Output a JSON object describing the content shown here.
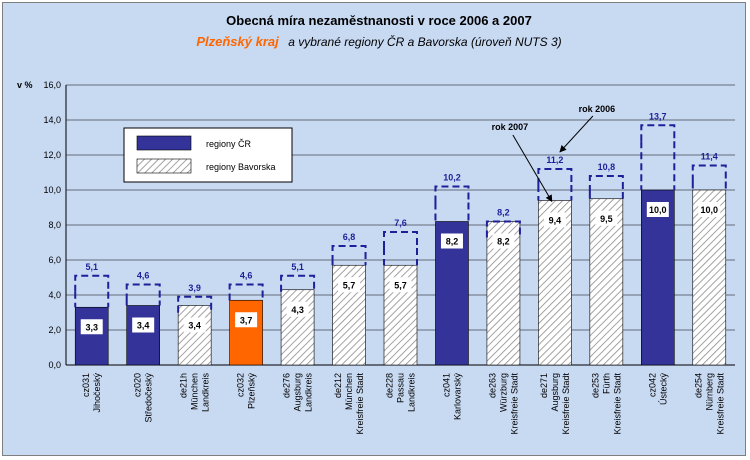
{
  "chart_data": {
    "type": "bar",
    "title": "Obecná míra nezaměstnanosti v roce 2006 a 2007",
    "subtitle_region": "Plzeňský kraj",
    "subtitle_rest": "a vybrané regiony ČR a Bavorska (úroveň NUTS 3)",
    "ylabel": "v %",
    "ylim": [
      0,
      16
    ],
    "yticks": [
      "0,0",
      "2,0",
      "4,0",
      "6,0",
      "8,0",
      "10,0",
      "12,0",
      "14,0",
      "16,0"
    ],
    "grid": true,
    "legend_position": "top-left",
    "legend": [
      {
        "key": "cz",
        "label": "regiony ČR",
        "color": "#333399"
      },
      {
        "key": "de",
        "label": "regiony Bavorska",
        "color": "#ffffff"
      }
    ],
    "categories": [
      {
        "lines": [
          "cz031",
          "Jihočeský"
        ],
        "group": "cz",
        "v2007": 3.3,
        "v2006": 5.1,
        "l2007": "3,3",
        "l2006": "5,1"
      },
      {
        "lines": [
          "cz020",
          "Středočeský"
        ],
        "group": "cz",
        "v2007": 3.4,
        "v2006": 4.6,
        "l2007": "3,4",
        "l2006": "4,6"
      },
      {
        "lines": [
          "de21h",
          "München",
          "Landkreis"
        ],
        "group": "de",
        "v2007": 3.4,
        "v2006": 3.9,
        "l2007": "3,4",
        "l2006": "3,9"
      },
      {
        "lines": [
          "cz032",
          "Plzeňský"
        ],
        "group": "highlight",
        "v2007": 3.7,
        "v2006": 4.6,
        "l2007": "3,7",
        "l2006": "4,6"
      },
      {
        "lines": [
          "de276",
          "Augsburg",
          "Landkreis"
        ],
        "group": "de",
        "v2007": 4.3,
        "v2006": 5.1,
        "l2007": "4,3",
        "l2006": "5,1"
      },
      {
        "lines": [
          "de212",
          "München",
          "Kreisfreie Stadt"
        ],
        "group": "de",
        "v2007": 5.7,
        "v2006": 6.8,
        "l2007": "5,7",
        "l2006": "6,8"
      },
      {
        "lines": [
          "de228",
          "Passau",
          "Landkreis"
        ],
        "group": "de",
        "v2007": 5.7,
        "v2006": 7.6,
        "l2007": "5,7",
        "l2006": "7,6"
      },
      {
        "lines": [
          "cz041",
          "Karlovarský"
        ],
        "group": "cz",
        "v2007": 8.2,
        "v2006": 10.2,
        "l2007": "8,2",
        "l2006": "10,2"
      },
      {
        "lines": [
          "de263",
          "Würzburg",
          "Kreisfreie Stadt"
        ],
        "group": "de",
        "v2007": 8.2,
        "v2006": 8.2,
        "l2007": "8,2",
        "l2006": "8,2"
      },
      {
        "lines": [
          "de271",
          "Augsburg",
          "Kreisfreie Stadt"
        ],
        "group": "de",
        "v2007": 9.4,
        "v2006": 11.2,
        "l2007": "9,4",
        "l2006": "11,2"
      },
      {
        "lines": [
          "de253",
          "Fürth",
          "Kreisfreie Stadt"
        ],
        "group": "de",
        "v2007": 9.5,
        "v2006": 10.8,
        "l2007": "9,5",
        "l2006": "10,8"
      },
      {
        "lines": [
          "cz042",
          "Ústecký"
        ],
        "group": "cz",
        "v2007": 10.0,
        "v2006": 13.7,
        "l2007": "10,0",
        "l2006": "13,7"
      },
      {
        "lines": [
          "de254",
          "Nürnberg",
          "Kreisfreie Stadt"
        ],
        "group": "de",
        "v2007": 10.0,
        "v2006": 11.4,
        "l2007": "10,0",
        "l2006": "11,4"
      }
    ],
    "annotations": [
      {
        "text": "rok 2007",
        "target_index": 9,
        "target": "2007"
      },
      {
        "text": "rok 2006",
        "target_index": 9,
        "target": "2006"
      }
    ],
    "colors": {
      "cz": "#333399",
      "highlight": "#ff6600",
      "de_hatch": "#8c8c8c",
      "outline2006": "#1f1f99"
    }
  }
}
